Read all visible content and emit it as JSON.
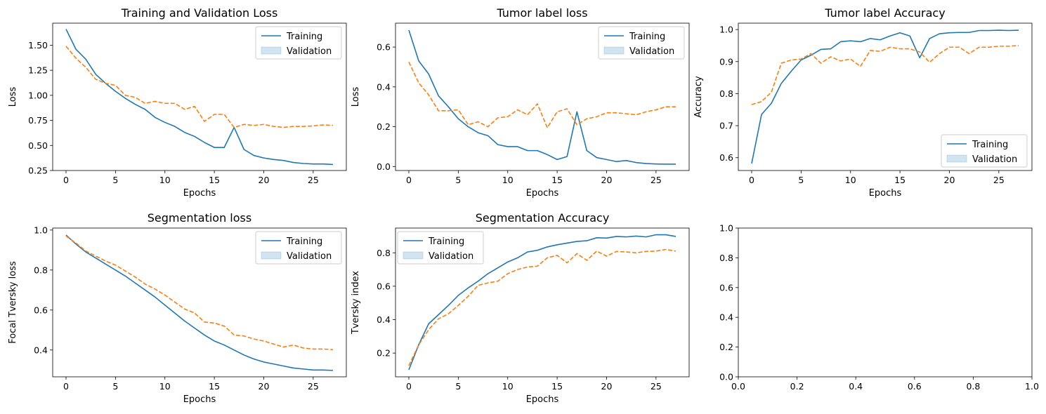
{
  "chart_data": [
    {
      "type": "line",
      "title": "Training and Validation Loss",
      "xlabel": "Epochs",
      "ylabel": "Loss",
      "xlim": [
        -1.35,
        28.35
      ],
      "ylim": [
        0.25,
        1.72
      ],
      "xticks": [
        0,
        5,
        10,
        15,
        20,
        25
      ],
      "yticks": [
        0.25,
        0.5,
        0.75,
        1.0,
        1.25,
        1.5
      ],
      "ytick_labels": [
        "0.25",
        "0.50",
        "0.75",
        "1.00",
        "1.25",
        "1.50"
      ],
      "legend": {
        "position": "top-right",
        "entries": [
          "Training",
          "Validation"
        ]
      },
      "series": [
        {
          "name": "Training",
          "color": "#1f77b4",
          "style": "solid",
          "x": [
            0,
            1,
            2,
            3,
            4,
            5,
            6,
            7,
            8,
            9,
            10,
            11,
            12,
            13,
            14,
            15,
            16,
            17,
            18,
            19,
            20,
            21,
            22,
            23,
            24,
            25,
            26,
            27
          ],
          "values": [
            1.66,
            1.46,
            1.36,
            1.21,
            1.12,
            1.04,
            0.97,
            0.91,
            0.86,
            0.78,
            0.73,
            0.69,
            0.63,
            0.59,
            0.53,
            0.48,
            0.48,
            0.68,
            0.46,
            0.4,
            0.375,
            0.36,
            0.35,
            0.33,
            0.32,
            0.315,
            0.315,
            0.31
          ]
        },
        {
          "name": "",
          "color": "#ff7f0e",
          "style": "dashed",
          "x": [
            0,
            1,
            2,
            3,
            4,
            5,
            6,
            7,
            8,
            9,
            10,
            11,
            12,
            13,
            14,
            15,
            16,
            17,
            18,
            19,
            20,
            21,
            22,
            23,
            24,
            25,
            26,
            27
          ],
          "values": [
            1.49,
            1.37,
            1.28,
            1.16,
            1.12,
            1.1,
            1.0,
            0.98,
            0.92,
            0.94,
            0.92,
            0.92,
            0.86,
            0.89,
            0.74,
            0.81,
            0.81,
            0.68,
            0.71,
            0.7,
            0.71,
            0.69,
            0.68,
            0.69,
            0.69,
            0.695,
            0.705,
            0.7
          ]
        }
      ]
    },
    {
      "type": "line",
      "title": "Tumor label loss",
      "xlabel": "Epochs",
      "ylabel": "Loss",
      "xlim": [
        -1.35,
        28.35
      ],
      "ylim": [
        -0.02,
        0.72
      ],
      "xticks": [
        0,
        5,
        10,
        15,
        20,
        25
      ],
      "yticks": [
        0.0,
        0.2,
        0.4,
        0.6
      ],
      "ytick_labels": [
        "0.0",
        "0.2",
        "0.4",
        "0.6"
      ],
      "legend": {
        "position": "top-right",
        "entries": [
          "Training",
          "Validation"
        ]
      },
      "series": [
        {
          "name": "Training",
          "color": "#1f77b4",
          "style": "solid",
          "x": [
            0,
            1,
            2,
            3,
            4,
            5,
            6,
            7,
            8,
            9,
            10,
            11,
            12,
            13,
            14,
            15,
            16,
            17,
            18,
            19,
            20,
            21,
            22,
            23,
            24,
            25,
            26,
            27
          ],
          "values": [
            0.685,
            0.53,
            0.465,
            0.355,
            0.3,
            0.24,
            0.2,
            0.17,
            0.155,
            0.11,
            0.1,
            0.1,
            0.08,
            0.08,
            0.06,
            0.035,
            0.05,
            0.275,
            0.08,
            0.045,
            0.035,
            0.025,
            0.03,
            0.02,
            0.015,
            0.013,
            0.012,
            0.012
          ]
        },
        {
          "name": "",
          "color": "#ff7f0e",
          "style": "dashed",
          "x": [
            0,
            1,
            2,
            3,
            4,
            5,
            6,
            7,
            8,
            9,
            10,
            11,
            12,
            13,
            14,
            15,
            16,
            17,
            18,
            19,
            20,
            21,
            22,
            23,
            24,
            25,
            26,
            27
          ],
          "values": [
            0.525,
            0.42,
            0.36,
            0.28,
            0.28,
            0.285,
            0.21,
            0.225,
            0.2,
            0.245,
            0.25,
            0.285,
            0.26,
            0.315,
            0.195,
            0.275,
            0.29,
            0.21,
            0.24,
            0.25,
            0.27,
            0.27,
            0.265,
            0.26,
            0.275,
            0.285,
            0.3,
            0.3
          ]
        }
      ]
    },
    {
      "type": "line",
      "title": "Tumor label Accuracy",
      "xlabel": "Epochs",
      "ylabel": "Accuracy",
      "xlim": [
        -1.35,
        28.35
      ],
      "ylim": [
        0.56,
        1.02
      ],
      "xticks": [
        0,
        5,
        10,
        15,
        20,
        25
      ],
      "yticks": [
        0.6,
        0.7,
        0.8,
        0.9,
        1.0
      ],
      "ytick_labels": [
        "0.6",
        "0.7",
        "0.8",
        "0.9",
        "1.0"
      ],
      "legend": {
        "position": "lower-right",
        "entries": [
          "Training",
          "Validation"
        ]
      },
      "series": [
        {
          "name": "Training",
          "color": "#1f77b4",
          "style": "solid",
          "x": [
            0,
            1,
            2,
            3,
            4,
            5,
            6,
            7,
            8,
            9,
            10,
            11,
            12,
            13,
            14,
            15,
            16,
            17,
            18,
            19,
            20,
            21,
            22,
            23,
            24,
            25,
            26,
            27
          ],
          "values": [
            0.582,
            0.735,
            0.77,
            0.832,
            0.87,
            0.905,
            0.92,
            0.938,
            0.94,
            0.962,
            0.965,
            0.962,
            0.972,
            0.968,
            0.98,
            0.99,
            0.98,
            0.912,
            0.972,
            0.987,
            0.99,
            0.991,
            0.991,
            0.997,
            0.997,
            0.998,
            0.997,
            0.998
          ]
        },
        {
          "name": "",
          "color": "#ff7f0e",
          "style": "dashed",
          "x": [
            0,
            1,
            2,
            3,
            4,
            5,
            6,
            7,
            8,
            9,
            10,
            11,
            12,
            13,
            14,
            15,
            16,
            17,
            18,
            19,
            20,
            21,
            22,
            23,
            24,
            25,
            26,
            27
          ],
          "values": [
            0.766,
            0.775,
            0.805,
            0.895,
            0.905,
            0.908,
            0.925,
            0.895,
            0.915,
            0.902,
            0.908,
            0.885,
            0.935,
            0.932,
            0.945,
            0.94,
            0.94,
            0.93,
            0.898,
            0.925,
            0.945,
            0.945,
            0.925,
            0.945,
            0.945,
            0.948,
            0.948,
            0.95
          ]
        }
      ]
    },
    {
      "type": "line",
      "title": "Segmentation loss",
      "xlabel": "Epochs",
      "ylabel": "Focal Tversky loss",
      "xlim": [
        -1.35,
        28.35
      ],
      "ylim": [
        0.266,
        1.01
      ],
      "xticks": [
        0,
        5,
        10,
        15,
        20,
        25
      ],
      "yticks": [
        0.4,
        0.6,
        0.8,
        1.0
      ],
      "ytick_labels": [
        "0.4",
        "0.6",
        "0.8",
        "1.0"
      ],
      "legend": {
        "position": "top-right",
        "entries": [
          "Training",
          "Validation"
        ]
      },
      "series": [
        {
          "name": "Training",
          "color": "#1f77b4",
          "style": "solid",
          "x": [
            0,
            1,
            2,
            3,
            4,
            5,
            6,
            7,
            8,
            9,
            10,
            11,
            12,
            13,
            14,
            15,
            16,
            17,
            18,
            19,
            20,
            21,
            22,
            23,
            24,
            25,
            26,
            27
          ],
          "values": [
            0.975,
            0.93,
            0.89,
            0.86,
            0.83,
            0.8,
            0.77,
            0.735,
            0.7,
            0.665,
            0.625,
            0.585,
            0.545,
            0.51,
            0.475,
            0.445,
            0.425,
            0.4,
            0.375,
            0.355,
            0.34,
            0.33,
            0.32,
            0.31,
            0.305,
            0.3,
            0.3,
            0.298
          ]
        },
        {
          "name": "",
          "color": "#ff7f0e",
          "style": "dashed",
          "x": [
            0,
            1,
            2,
            3,
            4,
            5,
            6,
            7,
            8,
            9,
            10,
            11,
            12,
            13,
            14,
            15,
            16,
            17,
            18,
            19,
            20,
            21,
            22,
            23,
            24,
            25,
            26,
            27
          ],
          "values": [
            0.97,
            0.935,
            0.895,
            0.87,
            0.845,
            0.825,
            0.795,
            0.765,
            0.73,
            0.705,
            0.675,
            0.64,
            0.605,
            0.585,
            0.54,
            0.535,
            0.52,
            0.475,
            0.47,
            0.455,
            0.445,
            0.43,
            0.415,
            0.425,
            0.41,
            0.405,
            0.405,
            0.402
          ]
        }
      ]
    },
    {
      "type": "line",
      "title": "Segmentation Accuracy",
      "xlabel": "Epochs",
      "ylabel": "Tversky index",
      "xlim": [
        -1.35,
        28.35
      ],
      "ylim": [
        0.058,
        0.948
      ],
      "xticks": [
        0,
        5,
        10,
        15,
        20,
        25
      ],
      "yticks": [
        0.2,
        0.4,
        0.6,
        0.8
      ],
      "ytick_labels": [
        "0.2",
        "0.4",
        "0.6",
        "0.8"
      ],
      "legend": {
        "position": "top-left",
        "entries": [
          "Training",
          "Validation"
        ]
      },
      "series": [
        {
          "name": "Training",
          "color": "#1f77b4",
          "style": "solid",
          "x": [
            0,
            1,
            2,
            3,
            4,
            5,
            6,
            7,
            8,
            9,
            10,
            11,
            12,
            13,
            14,
            15,
            16,
            17,
            18,
            19,
            20,
            21,
            22,
            23,
            24,
            25,
            26,
            27
          ],
          "values": [
            0.1,
            0.25,
            0.375,
            0.43,
            0.485,
            0.545,
            0.59,
            0.63,
            0.675,
            0.71,
            0.745,
            0.77,
            0.805,
            0.815,
            0.835,
            0.848,
            0.858,
            0.868,
            0.872,
            0.89,
            0.888,
            0.898,
            0.895,
            0.9,
            0.895,
            0.908,
            0.908,
            0.898
          ]
        },
        {
          "name": "",
          "color": "#ff7f0e",
          "style": "dashed",
          "x": [
            0,
            1,
            2,
            3,
            4,
            5,
            6,
            7,
            8,
            9,
            10,
            11,
            12,
            13,
            14,
            15,
            16,
            17,
            18,
            19,
            20,
            21,
            22,
            23,
            24,
            25,
            26,
            27
          ],
          "values": [
            0.125,
            0.25,
            0.34,
            0.405,
            0.435,
            0.485,
            0.54,
            0.605,
            0.62,
            0.63,
            0.675,
            0.7,
            0.715,
            0.72,
            0.77,
            0.785,
            0.74,
            0.795,
            0.755,
            0.81,
            0.78,
            0.808,
            0.805,
            0.8,
            0.808,
            0.81,
            0.82,
            0.81
          ]
        }
      ]
    },
    {
      "type": "line",
      "title": "",
      "xlabel": "",
      "ylabel": "",
      "xlim": [
        0,
        1
      ],
      "ylim": [
        0,
        1
      ],
      "xticks": [
        0.0,
        0.2,
        0.4,
        0.6,
        0.8,
        1.0
      ],
      "xtick_labels": [
        "0.0",
        "0.2",
        "0.4",
        "0.6",
        "0.8",
        "1.0"
      ],
      "yticks": [
        0.0,
        0.2,
        0.4,
        0.6,
        0.8,
        1.0
      ],
      "ytick_labels": [
        "0.0",
        "0.2",
        "0.4",
        "0.6",
        "0.8",
        "1.0"
      ],
      "legend": null,
      "series": []
    }
  ]
}
